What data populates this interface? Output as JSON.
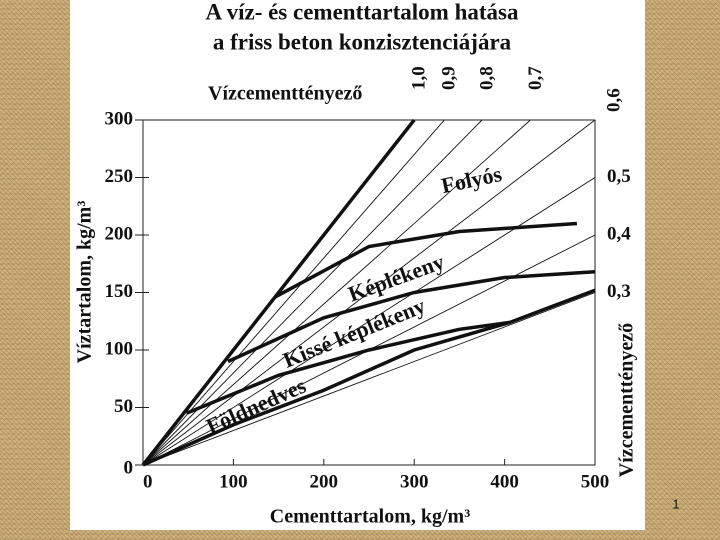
{
  "chart_data": {
    "type": "line",
    "title": "A víz- és cementtartalom hatása",
    "subtitle": "a friss beton konzisztenciájára",
    "x_label": "Cementtartalom, kg/m³",
    "y_label": "Víztartalom, kg/m³",
    "ratio_label_top": "Vízcementtényező",
    "ratio_label_right": "Vízcementtényező",
    "xlim": [
      0,
      500
    ],
    "ylim": [
      0,
      300
    ],
    "xticks": [
      0,
      100,
      200,
      300,
      400,
      500
    ],
    "yticks": [
      0,
      50,
      100,
      150,
      200,
      250,
      300
    ],
    "wc_lines": [
      {
        "value": 1.0,
        "label": "1,0"
      },
      {
        "value": 0.9,
        "label": "0,9"
      },
      {
        "value": 0.8,
        "label": "0,8"
      },
      {
        "value": 0.7,
        "label": "0,7"
      },
      {
        "value": 0.6,
        "label": "0,6"
      },
      {
        "value": 0.5,
        "label": "0,5"
      },
      {
        "value": 0.4,
        "label": "0,4"
      },
      {
        "value": 0.3,
        "label": "0,3"
      }
    ],
    "boundaries": [
      {
        "x": [
          146,
          250,
          350,
          480
        ],
        "values": [
          146,
          190,
          203,
          210
        ]
      },
      {
        "x": [
          94,
          200,
          300,
          400,
          500
        ],
        "values": [
          90,
          128,
          150,
          163,
          168
        ]
      },
      {
        "x": [
          48,
          150,
          250,
          350,
          406
        ],
        "values": [
          45,
          78,
          100,
          118,
          124
        ]
      },
      {
        "x": [
          0,
          100,
          200,
          300,
          406,
          500
        ],
        "values": [
          0,
          35,
          65,
          100,
          124,
          152
        ]
      }
    ],
    "zones": [
      "Folyós",
      "Képlékeny",
      "Kissé képlékeny",
      "Földnedves"
    ],
    "page_number": "1"
  }
}
